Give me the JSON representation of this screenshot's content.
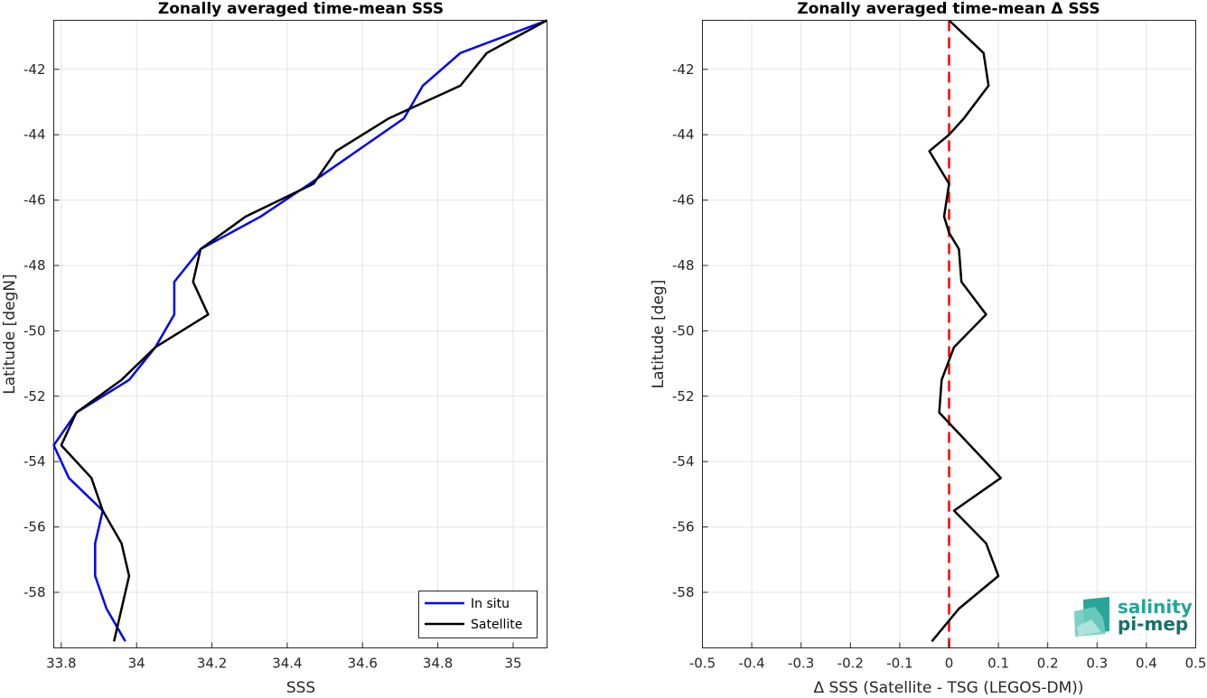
{
  "chart_data": [
    {
      "type": "line",
      "title": "Zonally averaged time-mean SSS",
      "xlabel": "SSS",
      "ylabel": "Latitude [degN]",
      "xlim": [
        33.78,
        35.09
      ],
      "ylim": [
        -59.7,
        -40.5
      ],
      "xticks": [
        33.8,
        34,
        34.2,
        34.4,
        34.6,
        34.8,
        35
      ],
      "xtick_labels": [
        "33.8",
        "34",
        "34.2",
        "34.4",
        "34.6",
        "34.8",
        "35"
      ],
      "yticks": [
        -42,
        -44,
        -46,
        -48,
        -50,
        -52,
        -54,
        -56,
        -58
      ],
      "ytick_labels": [
        "-42",
        "-44",
        "-46",
        "-48",
        "-50",
        "-52",
        "-54",
        "-56",
        "-58"
      ],
      "grid": true,
      "legend": "bottom-right",
      "series": [
        {
          "name": "In situ",
          "color": "#0000ff",
          "x": [
            35.09,
            34.86,
            34.76,
            34.71,
            34.46,
            34.33,
            34.17,
            34.1,
            34.1,
            34.05,
            33.98,
            33.84,
            33.78,
            33.82,
            33.91,
            33.89,
            33.89,
            33.92,
            33.97
          ],
          "y": [
            -40.5,
            -41.5,
            -42.5,
            -43.5,
            -45.5,
            -46.5,
            -47.5,
            -48.5,
            -49.5,
            -50.5,
            -51.5,
            -52.5,
            -53.5,
            -54.5,
            -55.5,
            -56.5,
            -57.5,
            -58.5,
            -59.5
          ]
        },
        {
          "name": "Satellite",
          "color": "#000000",
          "x": [
            35.09,
            34.93,
            34.86,
            34.67,
            34.53,
            34.47,
            34.29,
            34.17,
            34.15,
            34.19,
            34.05,
            33.96,
            33.84,
            33.8,
            33.88,
            33.91,
            33.96,
            33.98,
            33.94
          ],
          "y": [
            -40.5,
            -41.5,
            -42.5,
            -43.5,
            -44.5,
            -45.5,
            -46.5,
            -47.5,
            -48.5,
            -49.5,
            -50.5,
            -51.5,
            -52.5,
            -53.5,
            -54.5,
            -55.5,
            -56.5,
            -57.5,
            -59.5
          ]
        }
      ]
    },
    {
      "type": "line",
      "title": "Zonally averaged time-mean Δ SSS",
      "xlabel": "Δ SSS (Satellite - TSG (LEGOS-DM))",
      "ylabel": "Latitude [deg]",
      "xlim": [
        -0.5,
        0.5
      ],
      "ylim": [
        -59.7,
        -40.5
      ],
      "xticks": [
        -0.5,
        -0.4,
        -0.3,
        -0.2,
        -0.1,
        0,
        0.1,
        0.2,
        0.3,
        0.4,
        0.5
      ],
      "xtick_labels": [
        "-0.5",
        "-0.4",
        "-0.3",
        "-0.2",
        "-0.1",
        "0",
        "0.1",
        "0.2",
        "0.3",
        "0.4",
        "0.5"
      ],
      "yticks": [
        -42,
        -44,
        -46,
        -48,
        -50,
        -52,
        -54,
        -56,
        -58
      ],
      "ytick_labels": [
        "-42",
        "-44",
        "-46",
        "-48",
        "-50",
        "-52",
        "-54",
        "-56",
        "-58"
      ],
      "grid": true,
      "zero_line": {
        "x": 0,
        "color": "#ff0000",
        "style": "dashed"
      },
      "series": [
        {
          "color": "#000000",
          "x": [
            0.0,
            0.07,
            0.08,
            0.03,
            0.0,
            -0.04,
            0.0,
            -0.01,
            0.0,
            0.02,
            0.025,
            0.075,
            0.01,
            -0.015,
            -0.02,
            0.105,
            0.01,
            0.075,
            0.1,
            0.02,
            -0.035
          ],
          "y": [
            -40.5,
            -41.5,
            -42.5,
            -43.5,
            -44.0,
            -44.5,
            -45.5,
            -46.5,
            -47.0,
            -47.5,
            -48.5,
            -49.5,
            -50.5,
            -51.5,
            -52.5,
            -54.5,
            -55.5,
            -56.5,
            -57.5,
            -58.5,
            -59.5
          ]
        }
      ]
    }
  ],
  "logo": {
    "line1": "salinity",
    "line2": "pi-mep",
    "color1": "#1fa69a",
    "color2": "#17706a"
  }
}
